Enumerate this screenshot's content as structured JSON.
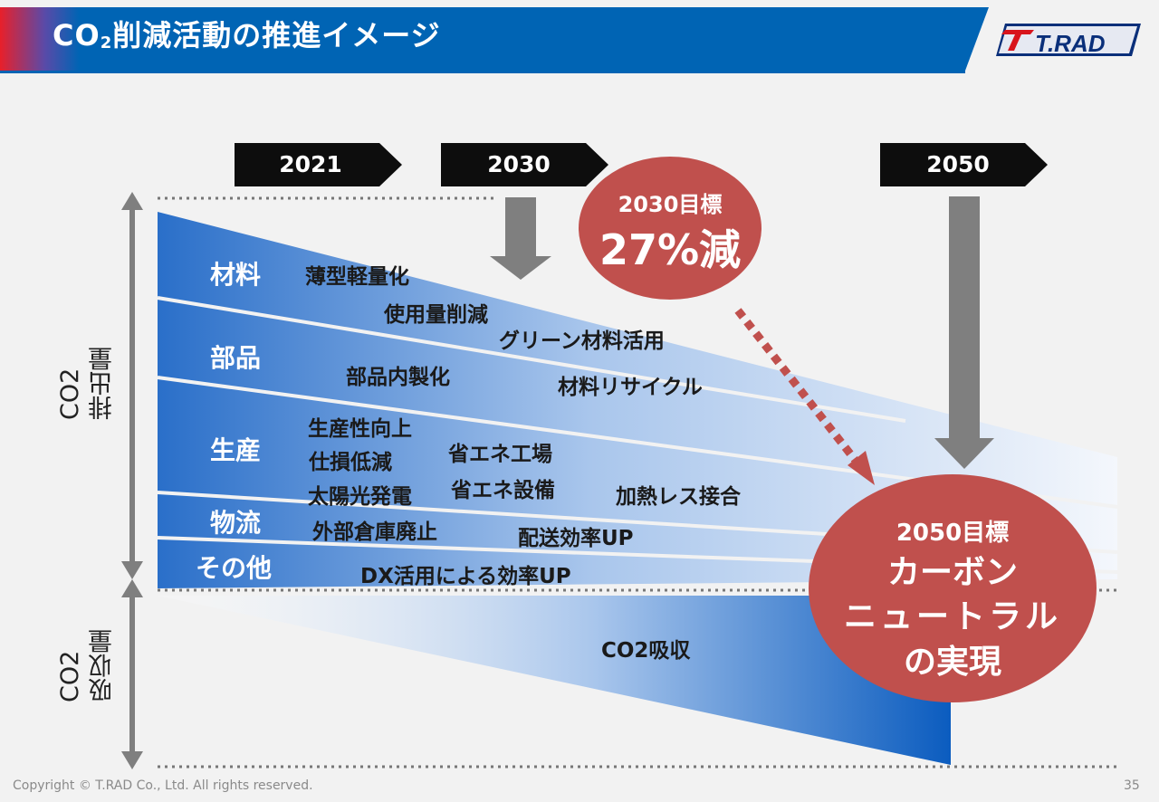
{
  "header": {
    "title_pre": "CO",
    "title_sub": "2",
    "title_post": "削減活動の推進イメージ",
    "logo_text": "T.RAD"
  },
  "timeline": [
    "2021",
    "2030",
    "2050"
  ],
  "axis": {
    "emission_l1": "CO2",
    "emission_l2": "排出量",
    "absorption_l1": "CO2",
    "absorption_l2": "吸収量"
  },
  "categories": [
    "材料",
    "部品",
    "生産",
    "物流",
    "その他"
  ],
  "activities": [
    "薄型軽量化",
    "使用量削減",
    "グリーン材料活用",
    "部品内製化",
    "材料リサイクル",
    "生産性向上",
    "仕損低減",
    "太陽光発電",
    "省エネ工場",
    "省エネ設備",
    "加熱レス接合",
    "外部倉庫廃止",
    "配送効率UP",
    "DX活用による効率UP"
  ],
  "absorption_label": "CO2吸収",
  "target_2030": {
    "label": "2030目標",
    "value": "27%減"
  },
  "target_2050": {
    "label": "2050目標",
    "l1": "カーボン",
    "l2": "ニュートラル",
    "l3": "の実現"
  },
  "footer": {
    "copyright": "Copyright © T.RAD Co., Ltd. All rights reserved.",
    "page": "35"
  },
  "colors": {
    "header_blue": "#0064b4",
    "band_blue": "#2f73cc",
    "target_red": "#c0504d",
    "arrow_gray": "#7f7f7f"
  }
}
